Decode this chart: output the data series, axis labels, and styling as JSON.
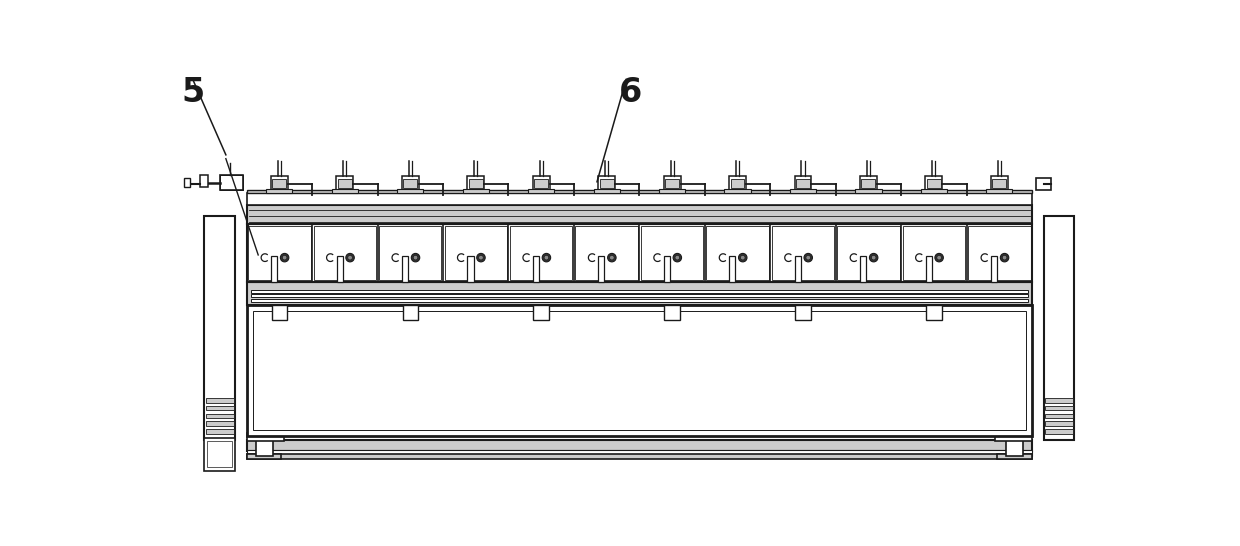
{
  "bg_color": "#ffffff",
  "lc": "#1a1a1a",
  "gc": "#aaaaaa",
  "lgc": "#cccccc",
  "label_5": "5",
  "label_6": "6",
  "num_cells": 12,
  "fig_width": 12.4,
  "fig_height": 5.46
}
